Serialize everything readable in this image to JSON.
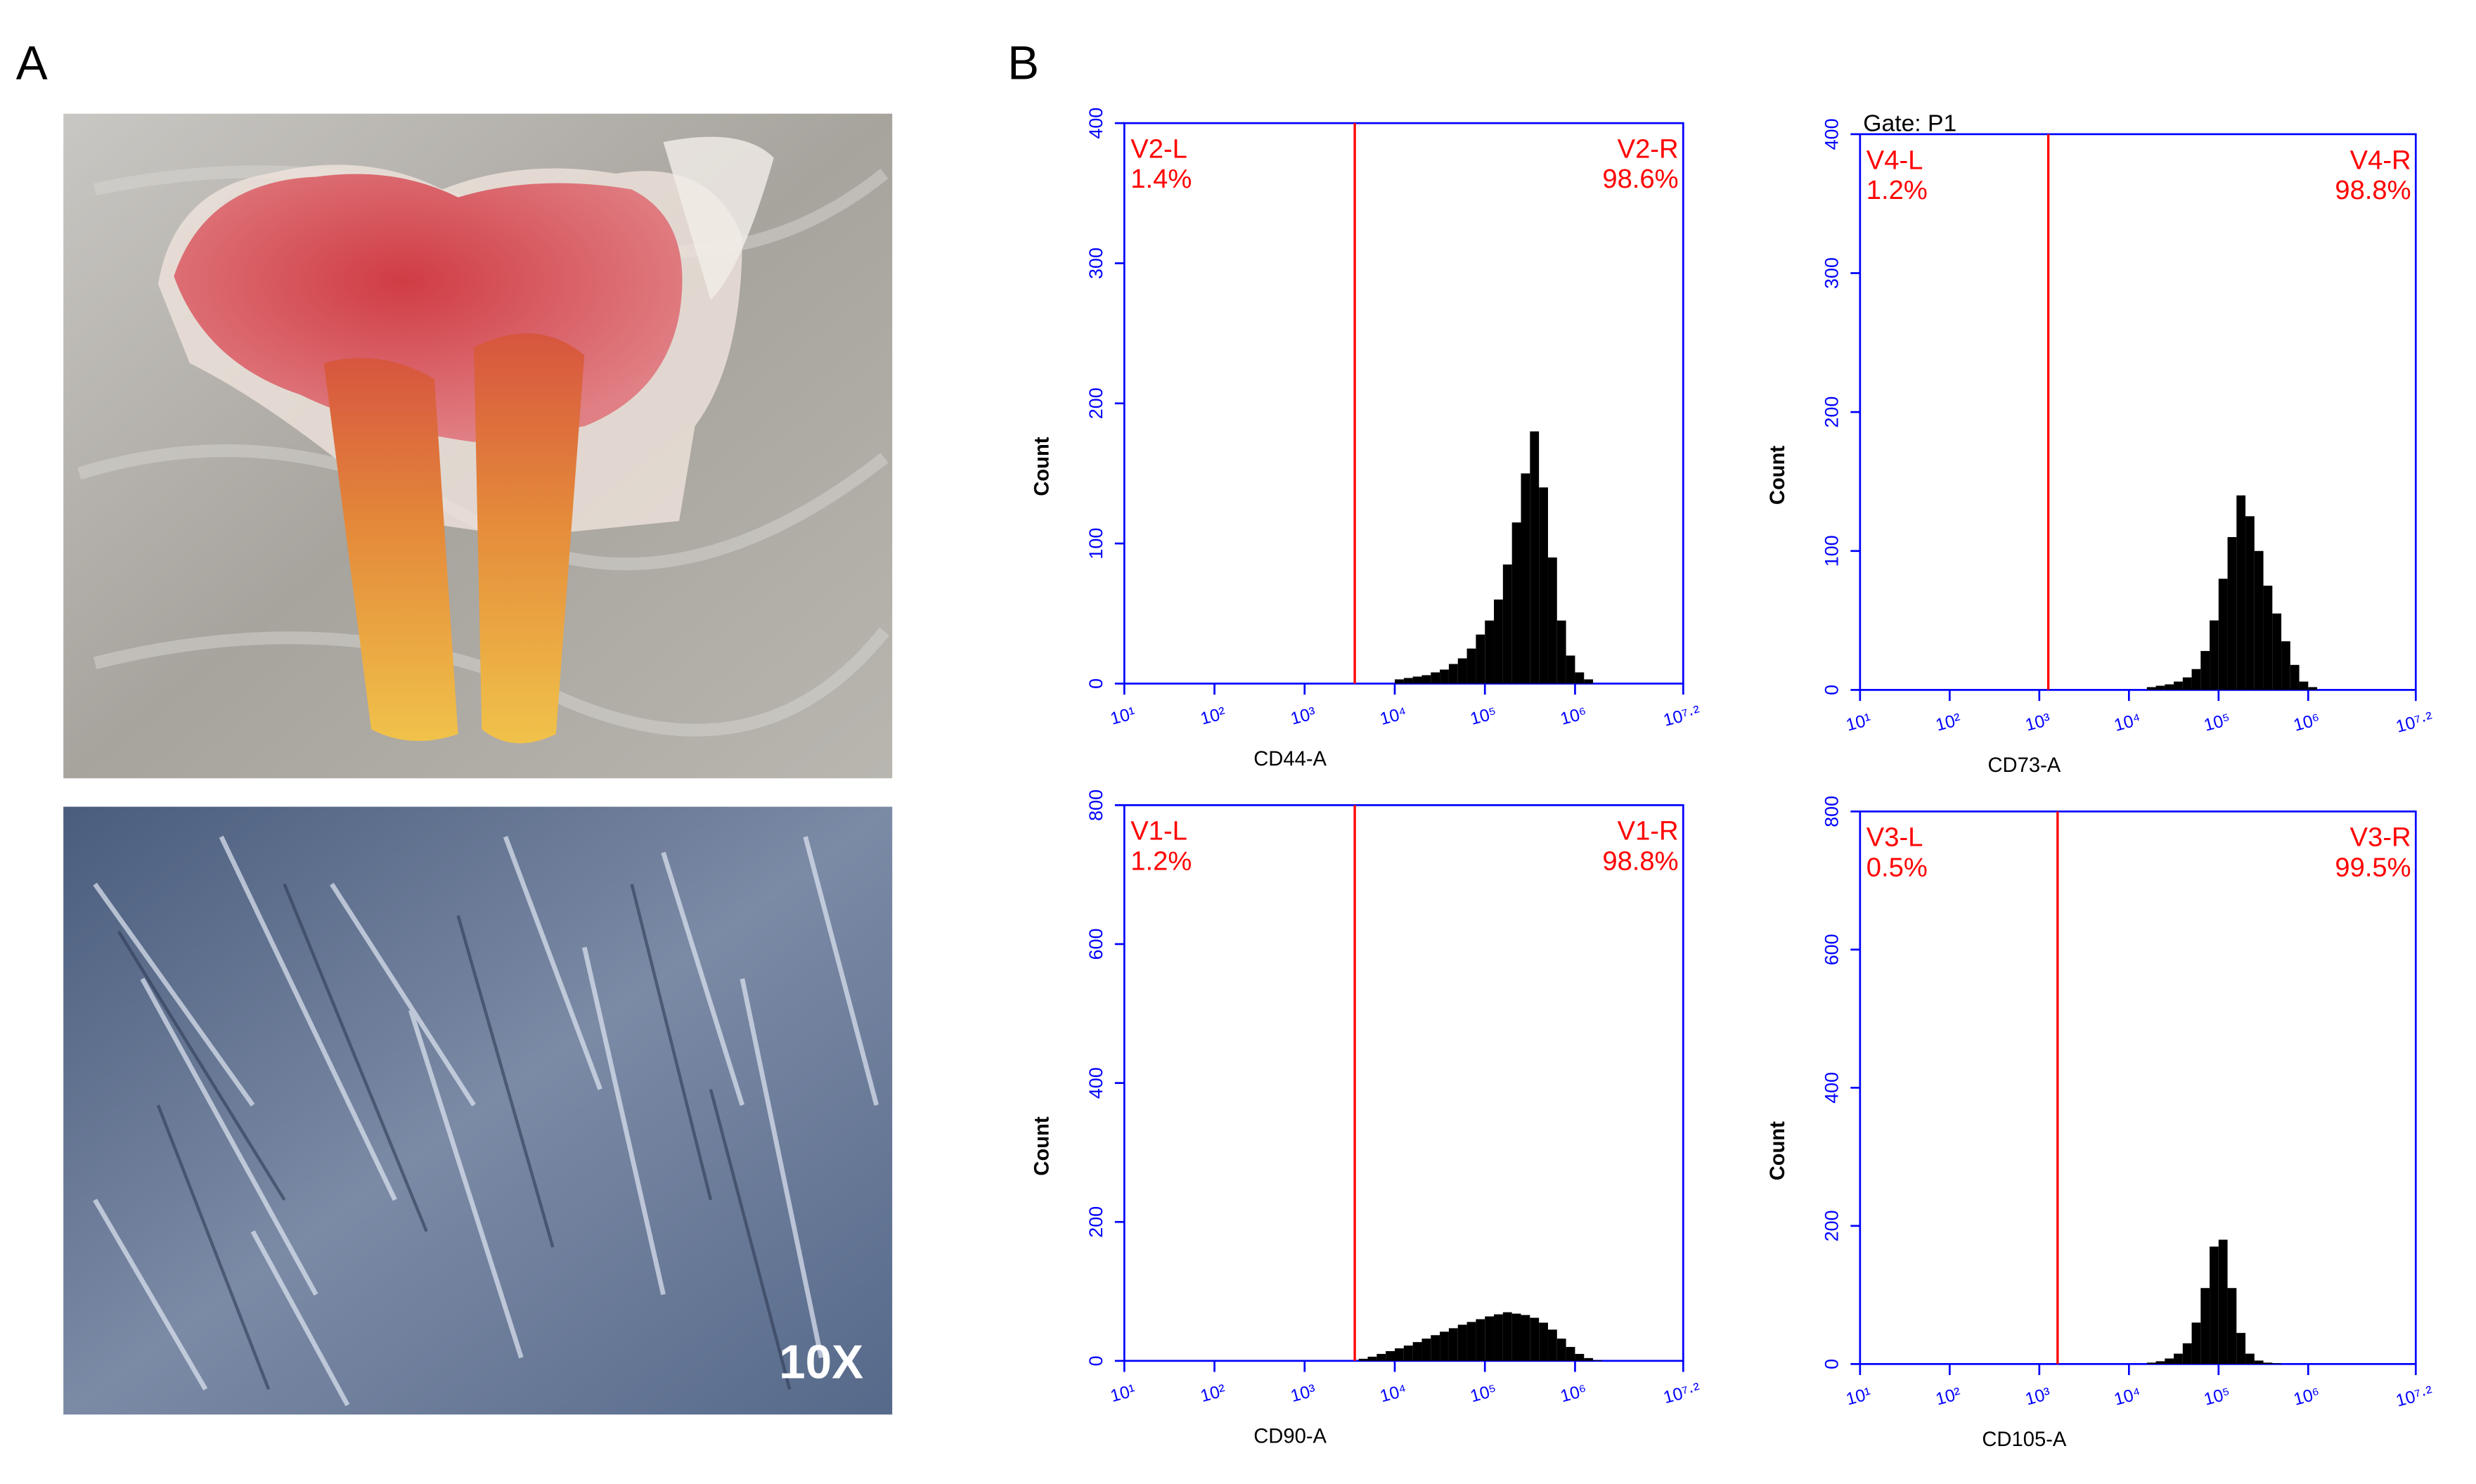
{
  "figure": {
    "panel_labels": [
      "A",
      "B"
    ],
    "magnification": "10X"
  },
  "chart_data": [
    {
      "type": "histogram",
      "x_label": "CD44-A",
      "y_label": "Count",
      "xscale": "log",
      "xlim": [
        10,
        15848932
      ],
      "xticks": [
        {
          "value": 10,
          "label": "10¹"
        },
        {
          "value": 100,
          "label": "10²"
        },
        {
          "value": 1000,
          "label": "10³"
        },
        {
          "value": 10000,
          "label": "10⁴"
        },
        {
          "value": 100000,
          "label": "10⁵"
        },
        {
          "value": 1000000,
          "label": "10⁶"
        },
        {
          "value": 15848932,
          "label": "10⁷·²"
        }
      ],
      "ylim": [
        0,
        400
      ],
      "yticks": [
        0,
        100,
        200,
        300,
        400
      ],
      "bins": [
        10000,
        12589,
        15849,
        19953,
        25119,
        31623,
        39811,
        50119,
        63096,
        79433,
        100000,
        125893,
        158489,
        199526,
        251189,
        316228,
        398107,
        501187,
        630957,
        794328,
        1000000,
        1258925,
        1584893
      ],
      "values": [
        3,
        4,
        5,
        6,
        8,
        10,
        14,
        18,
        25,
        35,
        45,
        60,
        85,
        115,
        150,
        180,
        140,
        90,
        45,
        20,
        8,
        3
      ],
      "color": "#000000",
      "axis_color": "#0000ff",
      "gate": {
        "value": 3600,
        "color": "#ff0000",
        "left_name": "V2-L",
        "left_label": "1.4%",
        "right_name": "V2-R",
        "right_label": "98.6%"
      }
    },
    {
      "type": "histogram",
      "x_label": "CD73-A",
      "y_label": "Count",
      "xscale": "log",
      "gate_title": "Gate: P1",
      "xlim": [
        10,
        15848932
      ],
      "xticks": [
        {
          "value": 10,
          "label": "10¹"
        },
        {
          "value": 100,
          "label": "10²"
        },
        {
          "value": 1000,
          "label": "10³"
        },
        {
          "value": 10000,
          "label": "10⁴"
        },
        {
          "value": 100000,
          "label": "10⁵"
        },
        {
          "value": 1000000,
          "label": "10⁶"
        },
        {
          "value": 15848932,
          "label": "10⁷·²"
        }
      ],
      "ylim": [
        0,
        400
      ],
      "yticks": [
        0,
        100,
        200,
        300,
        400
      ],
      "bins": [
        15849,
        19953,
        25119,
        31623,
        39811,
        50119,
        63096,
        79433,
        100000,
        125893,
        158489,
        199526,
        251189,
        316228,
        398107,
        501187,
        630957,
        794328,
        1000000,
        1258925
      ],
      "values": [
        2,
        3,
        4,
        6,
        9,
        15,
        28,
        50,
        80,
        110,
        140,
        125,
        100,
        75,
        55,
        35,
        18,
        6,
        2
      ],
      "color": "#000000",
      "axis_color": "#0000ff",
      "gate": {
        "value": 1260,
        "color": "#ff0000",
        "left_name": "V4-L",
        "left_label": "1.2%",
        "right_name": "V4-R",
        "right_label": "98.8%"
      }
    },
    {
      "type": "histogram",
      "x_label": "CD90-A",
      "y_label": "Count",
      "xscale": "log",
      "xlim": [
        10,
        15848932
      ],
      "xticks": [
        {
          "value": 10,
          "label": "10¹"
        },
        {
          "value": 100,
          "label": "10²"
        },
        {
          "value": 1000,
          "label": "10³"
        },
        {
          "value": 10000,
          "label": "10⁴"
        },
        {
          "value": 100000,
          "label": "10⁵"
        },
        {
          "value": 1000000,
          "label": "10⁶"
        },
        {
          "value": 15848932,
          "label": "10⁷·²"
        }
      ],
      "ylim": [
        0,
        800
      ],
      "yticks": [
        0,
        200,
        400,
        600,
        800
      ],
      "bins": [
        3981,
        5012,
        6310,
        7943,
        10000,
        12589,
        15849,
        19953,
        25119,
        31623,
        39811,
        50119,
        63096,
        79433,
        100000,
        125893,
        158489,
        199526,
        251189,
        316228,
        398107,
        501187,
        630957,
        794328,
        1000000,
        1258925,
        1584893,
        1995262
      ],
      "values": [
        3,
        6,
        10,
        14,
        18,
        22,
        27,
        32,
        37,
        42,
        47,
        52,
        56,
        60,
        64,
        67,
        70,
        68,
        66,
        62,
        55,
        45,
        32,
        20,
        10,
        4,
        1
      ],
      "color": "#000000",
      "axis_color": "#0000ff",
      "gate": {
        "value": 3600,
        "color": "#ff0000",
        "left_name": "V1-L",
        "left_label": "1.2%",
        "right_name": "V1-R",
        "right_label": "98.8%"
      }
    },
    {
      "type": "histogram",
      "x_label": "CD105-A",
      "y_label": "Count",
      "xscale": "log",
      "xlim": [
        10,
        15848932
      ],
      "xticks": [
        {
          "value": 10,
          "label": "10¹"
        },
        {
          "value": 100,
          "label": "10²"
        },
        {
          "value": 1000,
          "label": "10³"
        },
        {
          "value": 10000,
          "label": "10⁴"
        },
        {
          "value": 100000,
          "label": "10⁵"
        },
        {
          "value": 1000000,
          "label": "10⁶"
        },
        {
          "value": 15848932,
          "label": "10⁷·²"
        }
      ],
      "ylim": [
        0,
        800
      ],
      "yticks": [
        0,
        200,
        400,
        600,
        800
      ],
      "bins": [
        15849,
        19953,
        25119,
        31623,
        39811,
        50119,
        63096,
        79433,
        100000,
        125893,
        158489,
        199526,
        251189,
        316228,
        398107,
        501187
      ],
      "values": [
        2,
        4,
        8,
        15,
        30,
        60,
        110,
        170,
        180,
        110,
        45,
        15,
        5,
        2,
        1
      ],
      "color": "#000000",
      "axis_color": "#0000ff",
      "gate": {
        "value": 1600,
        "color": "#ff0000",
        "left_name": "V3-L",
        "left_label": "0.5%",
        "right_name": "V3-R",
        "right_label": "99.5%"
      }
    }
  ]
}
